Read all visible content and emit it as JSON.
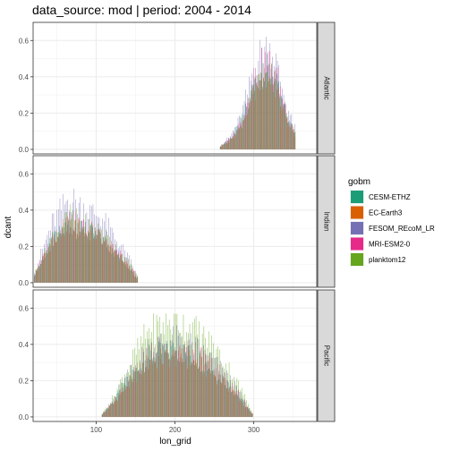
{
  "chart_data": {
    "type": "bar",
    "title": "data_source: mod | period: 2004 - 2014",
    "xlabel": "lon_grid",
    "ylabel": "dcant",
    "xlim": [
      20,
      380
    ],
    "ylim": [
      -0.025,
      0.7
    ],
    "x_ticks": [
      100,
      200,
      300
    ],
    "y_ticks": [
      0.0,
      0.2,
      0.4,
      0.6
    ],
    "x_tick_labels": [
      "100",
      "200",
      "300"
    ],
    "y_tick_labels": [
      "0.0",
      "0.2",
      "0.4",
      "0.6"
    ],
    "grid": true,
    "legend": {
      "title": "gobm",
      "position": "right",
      "entries": [
        {
          "name": "CESM-ETHZ",
          "color": "#1b9e77"
        },
        {
          "name": "EC-Earth3",
          "color": "#d95f02"
        },
        {
          "name": "FESOM_REcoM_LR",
          "color": "#7570b3"
        },
        {
          "name": "MRI-ESM2-0",
          "color": "#e7298a"
        },
        {
          "name": "planktom12",
          "color": "#66a61e"
        }
      ]
    },
    "facets": [
      {
        "name": "Atlantic",
        "lon_range": [
          258,
          352
        ],
        "profile": [
          [
            258,
            0.02
          ],
          [
            270,
            0.06
          ],
          [
            282,
            0.14
          ],
          [
            292,
            0.26
          ],
          [
            300,
            0.38
          ],
          [
            310,
            0.46
          ],
          [
            318,
            0.48
          ],
          [
            326,
            0.44
          ],
          [
            334,
            0.32
          ],
          [
            342,
            0.2
          ],
          [
            352,
            0.1
          ]
        ],
        "scale": {
          "CESM-ETHZ": 0.95,
          "EC-Earth3": 0.85,
          "FESOM_REcoM_LR": 1.22,
          "MRI-ESM2-0": 1.05,
          "planktom12": 0.9
        },
        "peak": 0.65
      },
      {
        "name": "Indian",
        "lon_range": [
          22,
          152
        ],
        "profile": [
          [
            22,
            0.05
          ],
          [
            32,
            0.14
          ],
          [
            44,
            0.25
          ],
          [
            56,
            0.31
          ],
          [
            66,
            0.36
          ],
          [
            78,
            0.33
          ],
          [
            92,
            0.3
          ],
          [
            106,
            0.28
          ],
          [
            118,
            0.22
          ],
          [
            130,
            0.16
          ],
          [
            142,
            0.1
          ],
          [
            152,
            0.03
          ]
        ],
        "scale": {
          "CESM-ETHZ": 0.92,
          "EC-Earth3": 0.95,
          "FESOM_REcoM_LR": 1.35,
          "MRI-ESM2-0": 1.0,
          "planktom12": 1.05
        },
        "peak": 0.66
      },
      {
        "name": "Pacific",
        "lon_range": [
          108,
          298
        ],
        "profile": [
          [
            108,
            0.02
          ],
          [
            120,
            0.08
          ],
          [
            134,
            0.18
          ],
          [
            150,
            0.28
          ],
          [
            166,
            0.38
          ],
          [
            180,
            0.4
          ],
          [
            200,
            0.42
          ],
          [
            216,
            0.4
          ],
          [
            232,
            0.36
          ],
          [
            250,
            0.3
          ],
          [
            266,
            0.22
          ],
          [
            280,
            0.14
          ],
          [
            292,
            0.06
          ],
          [
            298,
            0.02
          ]
        ],
        "scale": {
          "CESM-ETHZ": 0.9,
          "EC-Earth3": 0.82,
          "FESOM_REcoM_LR": 1.05,
          "MRI-ESM2-0": 0.95,
          "planktom12": 1.3
        },
        "peak": 0.57
      }
    ]
  }
}
